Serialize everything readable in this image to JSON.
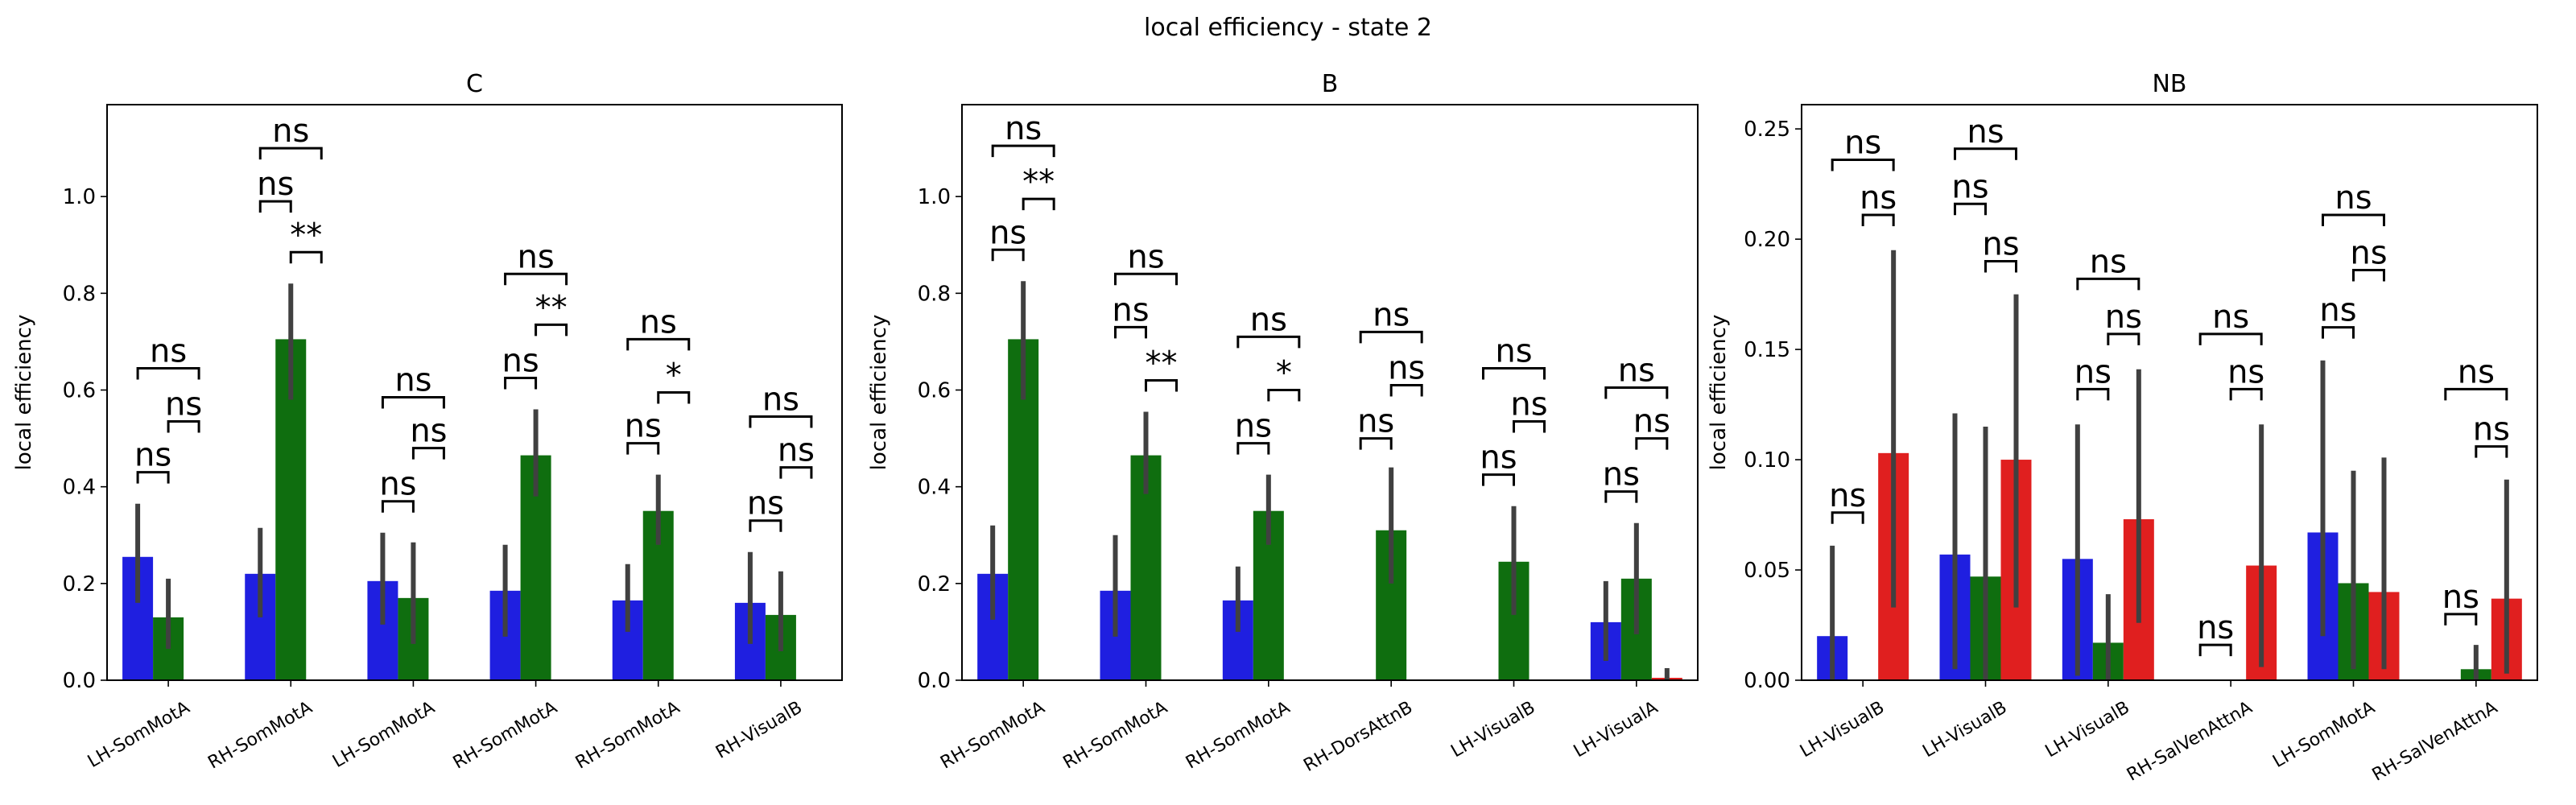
{
  "suptitle": "local efficiency - state 2",
  "colors": {
    "blue": "#1f1fe0",
    "green": "#0f6e0f",
    "red": "#e01f1f",
    "err": "#404040"
  },
  "chart_data": [
    {
      "type": "bar",
      "title": "C",
      "ylabel": "local efficiency",
      "ylim": [
        0,
        1.19
      ],
      "yticks": [
        "0.0",
        "0.2",
        "0.4",
        "0.6",
        "0.8",
        "1.0"
      ],
      "categories": [
        "LH-SomMotA",
        "RH-SomMotA",
        "LH-SomMotA",
        "RH-SomMotA",
        "RH-SomMotA",
        "RH-VisualB"
      ],
      "series": [
        {
          "color": "blue",
          "values": [
            0.255,
            0.22,
            0.205,
            0.185,
            0.165,
            0.16
          ],
          "err_low": [
            0.16,
            0.13,
            0.115,
            0.09,
            0.1,
            0.075
          ],
          "err_high": [
            0.365,
            0.315,
            0.305,
            0.28,
            0.24,
            0.265
          ]
        },
        {
          "color": "green",
          "values": [
            0.13,
            0.705,
            0.17,
            0.465,
            0.35,
            0.135
          ],
          "err_low": [
            0.065,
            0.58,
            0.075,
            0.38,
            0.28,
            0.06
          ],
          "err_high": [
            0.21,
            0.82,
            0.285,
            0.56,
            0.425,
            0.225
          ]
        }
      ],
      "annotations": [
        {
          "cat": 0,
          "a": 0,
          "b": 1,
          "y": 0.43,
          "text": "ns"
        },
        {
          "cat": 0,
          "a": 1,
          "b": 2,
          "y": 0.535,
          "text": "ns"
        },
        {
          "cat": 0,
          "a": 0,
          "b": 2,
          "y": 0.645,
          "text": "ns"
        },
        {
          "cat": 1,
          "a": 1,
          "b": 2,
          "y": 0.885,
          "text": "**"
        },
        {
          "cat": 1,
          "a": 0,
          "b": 1,
          "y": 0.99,
          "text": "ns"
        },
        {
          "cat": 1,
          "a": 0,
          "b": 2,
          "y": 1.1,
          "text": "ns"
        },
        {
          "cat": 2,
          "a": 0,
          "b": 1,
          "y": 0.37,
          "text": "ns"
        },
        {
          "cat": 2,
          "a": 1,
          "b": 2,
          "y": 0.48,
          "text": "ns"
        },
        {
          "cat": 2,
          "a": 0,
          "b": 2,
          "y": 0.585,
          "text": "ns"
        },
        {
          "cat": 3,
          "a": 0,
          "b": 1,
          "y": 0.625,
          "text": "ns"
        },
        {
          "cat": 3,
          "a": 1,
          "b": 2,
          "y": 0.735,
          "text": "**"
        },
        {
          "cat": 3,
          "a": 0,
          "b": 2,
          "y": 0.84,
          "text": "ns"
        },
        {
          "cat": 4,
          "a": 0,
          "b": 1,
          "y": 0.49,
          "text": "ns"
        },
        {
          "cat": 4,
          "a": 1,
          "b": 2,
          "y": 0.595,
          "text": "*"
        },
        {
          "cat": 4,
          "a": 0,
          "b": 2,
          "y": 0.705,
          "text": "ns"
        },
        {
          "cat": 5,
          "a": 0,
          "b": 1,
          "y": 0.33,
          "text": "ns"
        },
        {
          "cat": 5,
          "a": 1,
          "b": 2,
          "y": 0.44,
          "text": "ns"
        },
        {
          "cat": 5,
          "a": 0,
          "b": 2,
          "y": 0.545,
          "text": "ns"
        }
      ]
    },
    {
      "type": "bar",
      "title": "B",
      "ylabel": "local efficiency",
      "ylim": [
        0,
        1.19
      ],
      "yticks": [
        "0.0",
        "0.2",
        "0.4",
        "0.6",
        "0.8",
        "1.0"
      ],
      "categories": [
        "RH-SomMotA",
        "RH-SomMotA",
        "RH-SomMotA",
        "RH-DorsAttnB",
        "LH-VisualB",
        "LH-VisualA"
      ],
      "series": [
        {
          "color": "blue",
          "values": [
            0.22,
            0.185,
            0.165,
            null,
            null,
            0.12
          ],
          "err_low": [
            0.125,
            0.09,
            0.1,
            null,
            null,
            0.04
          ],
          "err_high": [
            0.32,
            0.3,
            0.235,
            null,
            null,
            0.205
          ]
        },
        {
          "color": "green",
          "values": [
            0.705,
            0.465,
            0.35,
            0.31,
            0.245,
            0.21
          ],
          "err_low": [
            0.58,
            0.385,
            0.28,
            0.2,
            0.135,
            0.095
          ],
          "err_high": [
            0.825,
            0.555,
            0.425,
            0.44,
            0.36,
            0.325
          ]
        },
        {
          "color": "red",
          "values": [
            null,
            null,
            null,
            null,
            null,
            0.005
          ],
          "err_low": [
            null,
            null,
            null,
            null,
            null,
            0.0
          ],
          "err_high": [
            null,
            null,
            null,
            null,
            null,
            0.025
          ]
        }
      ],
      "annotations": [
        {
          "cat": 0,
          "a": 0,
          "b": 1,
          "y": 0.89,
          "text": "ns"
        },
        {
          "cat": 0,
          "a": 1,
          "b": 2,
          "y": 0.995,
          "text": "**"
        },
        {
          "cat": 0,
          "a": 0,
          "b": 2,
          "y": 1.105,
          "text": "ns"
        },
        {
          "cat": 1,
          "a": 0,
          "b": 1,
          "y": 0.73,
          "text": "ns"
        },
        {
          "cat": 1,
          "a": 1,
          "b": 2,
          "y": 0.62,
          "text": "**"
        },
        {
          "cat": 1,
          "a": 0,
          "b": 2,
          "y": 0.84,
          "text": "ns"
        },
        {
          "cat": 2,
          "a": 0,
          "b": 1,
          "y": 0.49,
          "text": "ns"
        },
        {
          "cat": 2,
          "a": 1,
          "b": 2,
          "y": 0.6,
          "text": "*"
        },
        {
          "cat": 2,
          "a": 0,
          "b": 2,
          "y": 0.71,
          "text": "ns"
        },
        {
          "cat": 3,
          "a": 0,
          "b": 1,
          "y": 0.5,
          "text": "ns"
        },
        {
          "cat": 3,
          "a": 1,
          "b": 2,
          "y": 0.61,
          "text": "ns"
        },
        {
          "cat": 3,
          "a": 0,
          "b": 2,
          "y": 0.72,
          "text": "ns"
        },
        {
          "cat": 4,
          "a": 0,
          "b": 1,
          "y": 0.425,
          "text": "ns"
        },
        {
          "cat": 4,
          "a": 1,
          "b": 2,
          "y": 0.535,
          "text": "ns"
        },
        {
          "cat": 4,
          "a": 0,
          "b": 2,
          "y": 0.645,
          "text": "ns"
        },
        {
          "cat": 5,
          "a": 0,
          "b": 1,
          "y": 0.39,
          "text": "ns"
        },
        {
          "cat": 5,
          "a": 1,
          "b": 2,
          "y": 0.5,
          "text": "ns"
        },
        {
          "cat": 5,
          "a": 0,
          "b": 2,
          "y": 0.605,
          "text": "ns"
        }
      ]
    },
    {
      "type": "bar",
      "title": "NB",
      "ylabel": "local efficiency",
      "ylim": [
        0,
        0.261
      ],
      "yticks": [
        "0.00",
        "0.05",
        "0.10",
        "0.15",
        "0.20",
        "0.25"
      ],
      "categories": [
        "LH-VisualB",
        "LH-VisualB",
        "LH-VisualB",
        "RH-SalVenAttnA",
        "LH-SomMotA",
        "RH-SalVenAttnA"
      ],
      "series": [
        {
          "color": "blue",
          "values": [
            0.02,
            0.057,
            0.055,
            null,
            0.067,
            null
          ],
          "err_low": [
            0.0,
            0.005,
            0.002,
            null,
            0.02,
            null
          ],
          "err_high": [
            0.061,
            0.121,
            0.116,
            null,
            0.145,
            null
          ]
        },
        {
          "color": "green",
          "values": [
            null,
            0.047,
            0.017,
            null,
            0.044,
            0.005
          ],
          "err_low": [
            null,
            0.0,
            0.0,
            null,
            0.005,
            0.0
          ],
          "err_high": [
            null,
            0.115,
            0.039,
            null,
            0.095,
            0.016
          ]
        },
        {
          "color": "red",
          "values": [
            0.103,
            0.1,
            0.073,
            0.052,
            0.04,
            0.037
          ],
          "err_low": [
            0.033,
            0.033,
            0.026,
            0.006,
            0.005,
            0.003
          ],
          "err_high": [
            0.195,
            0.175,
            0.141,
            0.116,
            0.101,
            0.091
          ]
        }
      ],
      "annotations": [
        {
          "cat": 0,
          "a": 0,
          "b": 1,
          "y": 0.076,
          "text": "ns"
        },
        {
          "cat": 0,
          "a": 1,
          "b": 2,
          "y": 0.211,
          "text": "ns"
        },
        {
          "cat": 0,
          "a": 0,
          "b": 2,
          "y": 0.236,
          "text": "ns"
        },
        {
          "cat": 1,
          "a": 0,
          "b": 1,
          "y": 0.216,
          "text": "ns"
        },
        {
          "cat": 1,
          "a": 1,
          "b": 2,
          "y": 0.19,
          "text": "ns"
        },
        {
          "cat": 1,
          "a": 0,
          "b": 2,
          "y": 0.241,
          "text": "ns"
        },
        {
          "cat": 2,
          "a": 0,
          "b": 1,
          "y": 0.132,
          "text": "ns"
        },
        {
          "cat": 2,
          "a": 1,
          "b": 2,
          "y": 0.157,
          "text": "ns"
        },
        {
          "cat": 2,
          "a": 0,
          "b": 2,
          "y": 0.182,
          "text": "ns"
        },
        {
          "cat": 3,
          "a": 0,
          "b": 1,
          "y": 0.016,
          "text": "ns"
        },
        {
          "cat": 3,
          "a": 1,
          "b": 2,
          "y": 0.132,
          "text": "ns"
        },
        {
          "cat": 3,
          "a": 0,
          "b": 2,
          "y": 0.157,
          "text": "ns"
        },
        {
          "cat": 4,
          "a": 0,
          "b": 1,
          "y": 0.16,
          "text": "ns"
        },
        {
          "cat": 4,
          "a": 1,
          "b": 2,
          "y": 0.186,
          "text": "ns"
        },
        {
          "cat": 4,
          "a": 0,
          "b": 2,
          "y": 0.211,
          "text": "ns"
        },
        {
          "cat": 5,
          "a": 0,
          "b": 1,
          "y": 0.03,
          "text": "ns"
        },
        {
          "cat": 5,
          "a": 1,
          "b": 2,
          "y": 0.106,
          "text": "ns"
        },
        {
          "cat": 5,
          "a": 0,
          "b": 2,
          "y": 0.132,
          "text": "ns"
        }
      ]
    }
  ]
}
